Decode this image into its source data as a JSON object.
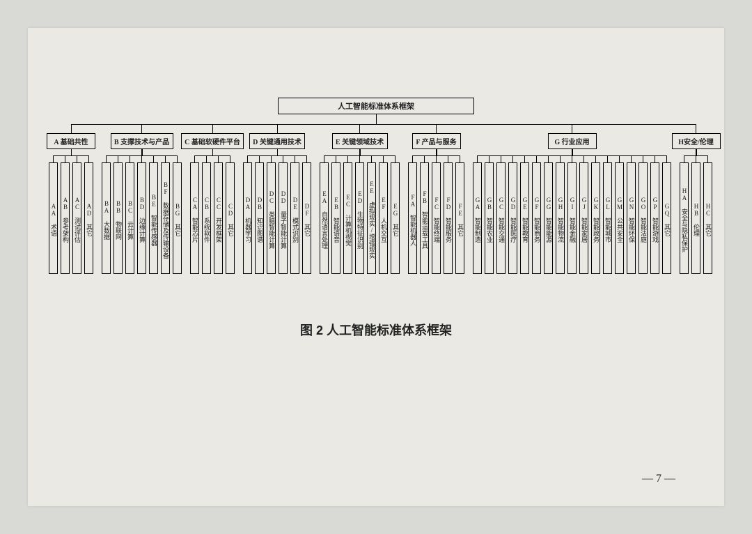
{
  "diagram": {
    "type": "tree",
    "root": {
      "label": "人工智能标准体系框架"
    },
    "caption": "图 2 人工智能标准体系框架",
    "page_number": "— 7 —",
    "background_color": "#eae9e4",
    "outer_background": "#d9d9d6",
    "line_color": "#000000",
    "text_color": "#222222",
    "root_fontsize": 11,
    "category_fontsize": 10,
    "leaf_fontsize": 9,
    "caption_fontsize": 18,
    "leaf_box_width": 13,
    "leaf_box_height": 160,
    "leaf_spacing": 17,
    "group_gap": 8,
    "categories": [
      {
        "code": "A",
        "label": "A 基础共性",
        "leaves": [
          {
            "code": "AA",
            "label": "AA 术语"
          },
          {
            "code": "AB",
            "label": "AB 参考架构"
          },
          {
            "code": "AC",
            "label": "AC 测试评估"
          },
          {
            "code": "AD",
            "label": "AD 其它"
          }
        ]
      },
      {
        "code": "B",
        "label": "B 支撑技术与产品",
        "leaves": [
          {
            "code": "BA",
            "label": "BA 大数据"
          },
          {
            "code": "BB",
            "label": "BB 物联网"
          },
          {
            "code": "BC",
            "label": "BC 云计算"
          },
          {
            "code": "BD",
            "label": "BD 边缘计算"
          },
          {
            "code": "BE",
            "label": "BE 智能传感器"
          },
          {
            "code": "BF",
            "label": "BF 数据存储及传输设备"
          },
          {
            "code": "BG",
            "label": "BG 其它"
          }
        ]
      },
      {
        "code": "C",
        "label": "C 基础软硬件平台",
        "leaves": [
          {
            "code": "CA",
            "label": "CA 智能芯片"
          },
          {
            "code": "CB",
            "label": "CB 系统软件"
          },
          {
            "code": "CC",
            "label": "CC 开发框架"
          },
          {
            "code": "CD",
            "label": "CD 其它"
          }
        ]
      },
      {
        "code": "D",
        "label": "D 关键通用技术",
        "leaves": [
          {
            "code": "DA",
            "label": "DA 机器学习"
          },
          {
            "code": "DB",
            "label": "DB 知识图谱"
          },
          {
            "code": "DC",
            "label": "DC 类脑智能计算"
          },
          {
            "code": "DD",
            "label": "DD 量子智能计算"
          },
          {
            "code": "DE",
            "label": "DE 模式识别"
          },
          {
            "code": "DF",
            "label": "DF 其它"
          }
        ]
      },
      {
        "code": "E",
        "label": "E 关键领域技术",
        "leaves": [
          {
            "code": "EA",
            "label": "EA 自然语言处理"
          },
          {
            "code": "EB",
            "label": "EB 智能语音"
          },
          {
            "code": "EC",
            "label": "EC 计算机视觉"
          },
          {
            "code": "ED",
            "label": "ED 生物特征识别"
          },
          {
            "code": "EE",
            "label": "EE 虚拟现实/增强现实"
          },
          {
            "code": "EF",
            "label": "EF 人机交互"
          },
          {
            "code": "EG",
            "label": "EG 其它"
          }
        ]
      },
      {
        "code": "F",
        "label": "F 产品与服务",
        "leaves": [
          {
            "code": "FA",
            "label": "FA 智能机器人"
          },
          {
            "code": "FB",
            "label": "FB 智能运载工具"
          },
          {
            "code": "FC",
            "label": "FC 智能终端"
          },
          {
            "code": "FD",
            "label": "FD 智能服务"
          },
          {
            "code": "FE",
            "label": "FE 其它"
          }
        ]
      },
      {
        "code": "G",
        "label": "G 行业应用",
        "leaves": [
          {
            "code": "GA",
            "label": "GA 智能制造"
          },
          {
            "code": "GB",
            "label": "GB 智能农业"
          },
          {
            "code": "GC",
            "label": "GC 智能交通"
          },
          {
            "code": "GD",
            "label": "GD 智能医疗"
          },
          {
            "code": "GE",
            "label": "GE 智能教育"
          },
          {
            "code": "GF",
            "label": "GF 智能商务"
          },
          {
            "code": "GG",
            "label": "GG 智能能源"
          },
          {
            "code": "GH",
            "label": "GH 智能物流"
          },
          {
            "code": "GI",
            "label": "GI 智能金融"
          },
          {
            "code": "GJ",
            "label": "GJ 智能家居"
          },
          {
            "code": "GK",
            "label": "GK 智能政务"
          },
          {
            "code": "GL",
            "label": "GL 智能城市"
          },
          {
            "code": "GM",
            "label": "GM 公共安全"
          },
          {
            "code": "GN",
            "label": "GN 智能环保"
          },
          {
            "code": "GO",
            "label": "GO 智能法庭"
          },
          {
            "code": "GP",
            "label": "GP 智能游戏"
          },
          {
            "code": "GQ",
            "label": "GQ 其它"
          }
        ]
      },
      {
        "code": "H",
        "label": "H安全/伦理",
        "leaves": [
          {
            "code": "HA",
            "label": "HA 安全与隐私保护"
          },
          {
            "code": "HB",
            "label": "HB 伦理"
          },
          {
            "code": "HC",
            "label": "HC 其它"
          }
        ]
      }
    ]
  }
}
